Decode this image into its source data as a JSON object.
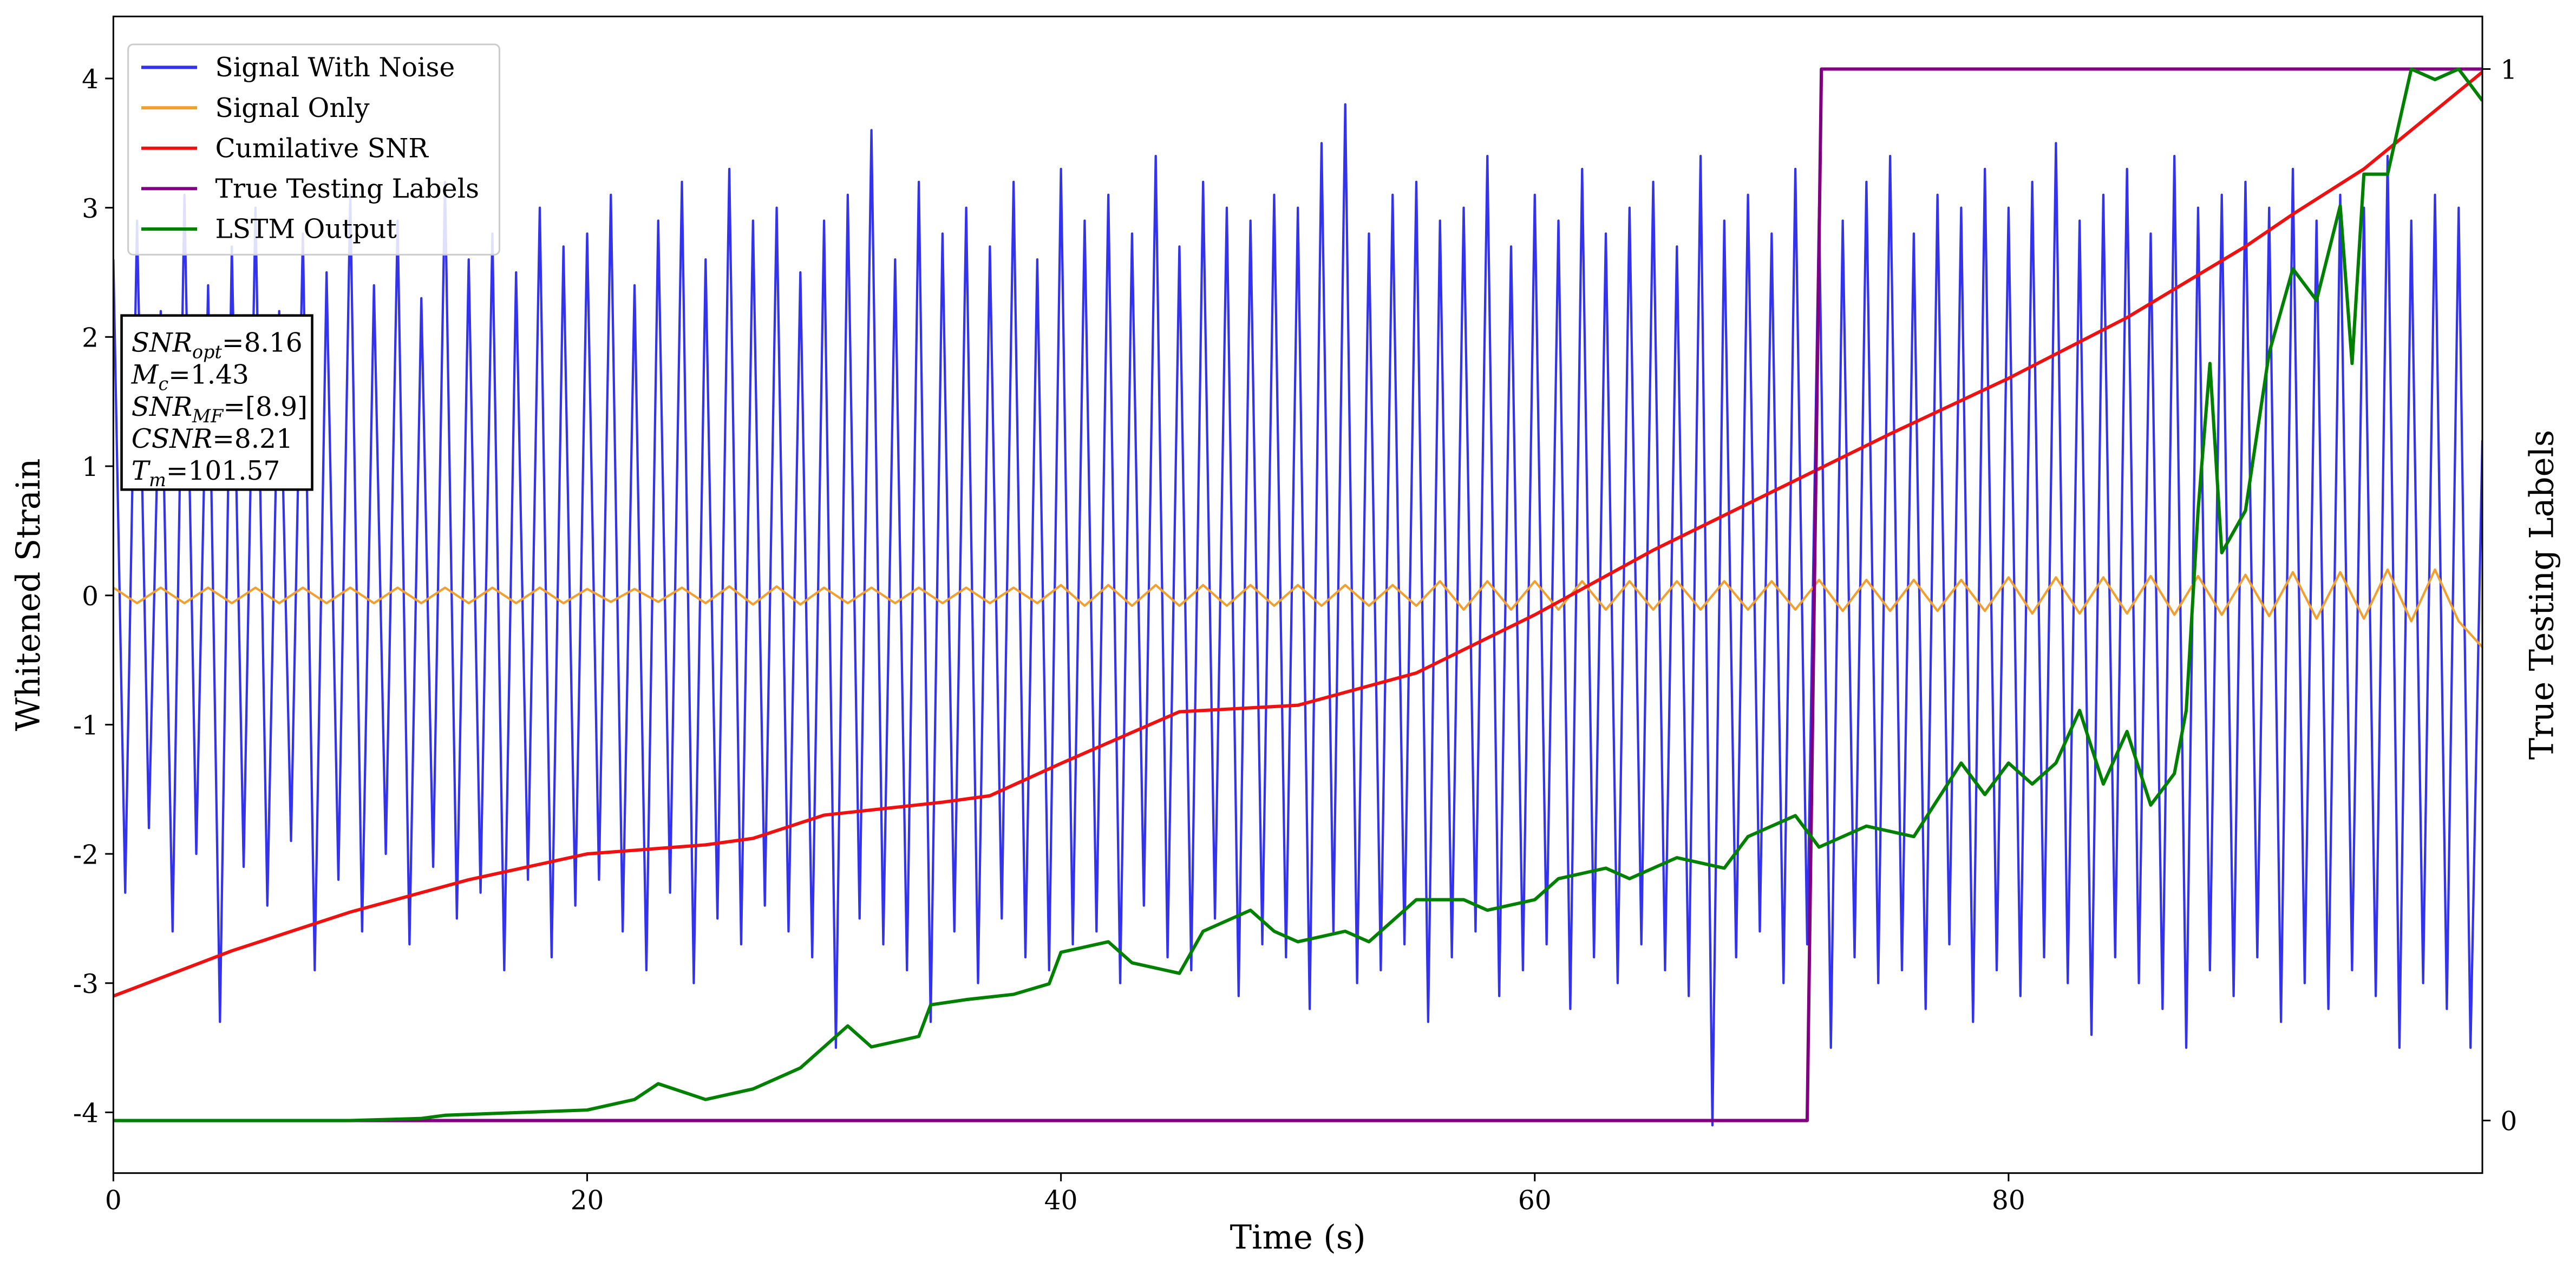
{
  "chart_data": {
    "type": "line",
    "xlabel": "Time (s)",
    "ylabel": "Whitened Strain",
    "y2label": "True Testing Labels",
    "xlim": [
      0,
      100
    ],
    "ylim": [
      -4.47,
      4.48
    ],
    "y2lim": [
      -0.05,
      1.05
    ],
    "xticks": [
      0,
      20,
      40,
      60,
      80
    ],
    "yticks": [
      -4,
      -3,
      -2,
      -1,
      0,
      1,
      2,
      3,
      4
    ],
    "y2ticks": [
      0,
      1
    ],
    "legend": "upper left",
    "annotation_lines": [
      {
        "symbol": "SNR",
        "sub": "opt",
        "text": "=8.16"
      },
      {
        "symbol": "M",
        "sub": "c",
        "text": "=1.43"
      },
      {
        "symbol": "SNR",
        "sub": "MF",
        "text": "=[8.9]"
      },
      {
        "symbol": "CSNR",
        "text": "=8.21"
      },
      {
        "symbol": "T",
        "sub": "m",
        "text": "=101.57"
      }
    ],
    "series": [
      {
        "name": "Signal With Noise",
        "color": "#3333ee",
        "x": [
          0,
          0.5,
          1,
          1.5,
          2,
          2.5,
          3,
          3.5,
          4,
          4.5,
          5,
          5.5,
          6,
          6.5,
          7,
          7.5,
          8,
          8.5,
          9,
          9.5,
          10,
          10.5,
          11,
          11.5,
          12,
          12.5,
          13,
          13.5,
          14,
          14.5,
          15,
          15.5,
          16,
          16.5,
          17,
          17.5,
          18,
          18.5,
          19,
          19.5,
          20,
          20.5,
          21,
          21.5,
          22,
          22.5,
          23,
          23.5,
          24,
          24.5,
          25,
          25.5,
          26,
          26.5,
          27,
          27.5,
          28,
          28.5,
          29,
          29.5,
          30,
          30.5,
          31,
          31.5,
          32,
          32.5,
          33,
          33.5,
          34,
          34.5,
          35,
          35.5,
          36,
          36.5,
          37,
          37.5,
          38,
          38.5,
          39,
          39.5,
          40,
          40.5,
          41,
          41.5,
          42,
          42.5,
          43,
          43.5,
          44,
          44.5,
          45,
          45.5,
          46,
          46.5,
          47,
          47.5,
          48,
          48.5,
          49,
          49.5,
          50,
          50.5,
          51,
          51.5,
          52,
          52.5,
          53,
          53.5,
          54,
          54.5,
          55,
          55.5,
          56,
          56.5,
          57,
          57.5,
          58,
          58.5,
          59,
          59.5,
          60,
          60.5,
          61,
          61.5,
          62,
          62.5,
          63,
          63.5,
          64,
          64.5,
          65,
          65.5,
          66,
          66.5,
          67,
          67.5,
          68,
          68.5,
          69,
          69.5,
          70,
          70.5,
          71,
          71.5,
          72,
          72.5,
          73,
          73.5,
          74,
          74.5,
          75,
          75.5,
          76,
          76.5,
          77,
          77.5,
          78,
          78.5,
          79,
          79.5,
          80,
          80.5,
          81,
          81.5,
          82,
          82.5,
          83,
          83.5,
          84,
          84.5,
          85,
          85.5,
          86,
          86.5,
          87,
          87.5,
          88,
          88.5,
          89,
          89.5,
          90,
          90.5,
          91,
          91.5,
          92,
          92.5,
          93,
          93.5,
          94,
          94.5,
          95,
          95.5,
          96,
          96.5,
          97,
          97.5,
          98,
          98.5,
          99,
          99.5,
          100
        ],
        "values": [
          2.6,
          -2.3,
          2.9,
          -1.8,
          2.2,
          -2.6,
          3.1,
          -2.0,
          2.4,
          -3.3,
          2.7,
          -2.1,
          3.0,
          -2.4,
          2.2,
          -1.9,
          2.8,
          -2.9,
          2.5,
          -2.2,
          3.1,
          -2.6,
          2.4,
          -2.0,
          2.9,
          -2.7,
          2.3,
          -2.1,
          3.2,
          -2.5,
          2.6,
          -2.3,
          2.8,
          -2.9,
          2.5,
          -2.2,
          3.0,
          -2.8,
          2.7,
          -2.4,
          2.8,
          -2.2,
          3.1,
          -2.6,
          2.4,
          -2.9,
          2.9,
          -2.3,
          3.2,
          -3.0,
          2.6,
          -2.5,
          3.3,
          -2.7,
          2.9,
          -2.4,
          3.0,
          -2.6,
          2.5,
          -2.8,
          2.9,
          -3.5,
          3.1,
          -2.5,
          3.6,
          -2.7,
          2.6,
          -2.9,
          3.2,
          -3.3,
          2.8,
          -2.6,
          3.0,
          -3.0,
          2.7,
          -2.5,
          3.2,
          -2.8,
          2.6,
          -2.9,
          3.3,
          -2.7,
          2.9,
          -2.6,
          3.1,
          -3.0,
          2.8,
          -2.4,
          3.4,
          -2.8,
          2.7,
          -2.9,
          3.2,
          -2.5,
          3.0,
          -3.1,
          2.9,
          -2.7,
          3.1,
          -2.8,
          3.0,
          -3.2,
          3.5,
          -2.6,
          3.8,
          -3.0,
          2.8,
          -2.9,
          3.1,
          -2.7,
          3.2,
          -3.3,
          2.9,
          -2.8,
          3.0,
          -2.6,
          3.4,
          -3.1,
          2.7,
          -2.9,
          3.1,
          -2.7,
          2.9,
          -3.2,
          3.3,
          -2.8,
          2.8,
          -3.0,
          3.0,
          -2.7,
          3.2,
          -2.9,
          2.7,
          -3.1,
          3.4,
          -4.1,
          2.9,
          -2.8,
          3.1,
          -2.6,
          2.8,
          -3.0,
          3.3,
          -2.7,
          3.0,
          -3.5,
          2.9,
          -2.8,
          3.2,
          -3.0,
          3.4,
          -2.9,
          2.8,
          -3.2,
          3.1,
          -2.7,
          3.0,
          -3.3,
          3.3,
          -2.9,
          3.0,
          -3.1,
          3.2,
          -2.8,
          3.5,
          -3.0,
          2.9,
          -3.4,
          3.1,
          -2.8,
          3.3,
          -3.0,
          2.8,
          -3.2,
          3.4,
          -3.5,
          3.0,
          -2.9,
          3.1,
          -3.1,
          3.2,
          -2.8,
          3.0,
          -3.3,
          3.3,
          -3.0,
          2.9,
          -3.2,
          3.1,
          -2.9,
          3.0,
          -3.1,
          3.4,
          -3.5,
          2.9,
          -3.0,
          3.1,
          -3.2,
          3.0,
          -3.5,
          1.2
        ]
      },
      {
        "name": "Signal Only",
        "color": "#f0a030",
        "x": [
          0,
          1,
          2,
          3,
          4,
          5,
          6,
          7,
          8,
          9,
          10,
          11,
          12,
          13,
          14,
          15,
          16,
          17,
          18,
          19,
          20,
          21,
          22,
          23,
          24,
          25,
          26,
          27,
          28,
          29,
          30,
          31,
          32,
          33,
          34,
          35,
          36,
          37,
          38,
          39,
          40,
          41,
          42,
          43,
          44,
          45,
          46,
          47,
          48,
          49,
          50,
          51,
          52,
          53,
          54,
          55,
          56,
          57,
          58,
          59,
          60,
          61,
          62,
          63,
          64,
          65,
          66,
          67,
          68,
          69,
          70,
          71,
          72,
          73,
          74,
          75,
          76,
          77,
          78,
          79,
          80,
          81,
          82,
          83,
          84,
          85,
          86,
          87,
          88,
          89,
          90,
          91,
          92,
          93,
          94,
          95,
          96,
          97,
          98,
          99,
          100
        ],
        "values": [
          0.06,
          -0.06,
          0.06,
          -0.06,
          0.06,
          -0.06,
          0.06,
          -0.06,
          0.06,
          -0.06,
          0.06,
          -0.06,
          0.06,
          -0.06,
          0.06,
          -0.06,
          0.06,
          -0.06,
          0.06,
          -0.06,
          0.05,
          -0.05,
          0.05,
          -0.05,
          0.06,
          -0.06,
          0.07,
          -0.07,
          0.07,
          -0.07,
          0.06,
          -0.06,
          0.06,
          -0.06,
          0.06,
          -0.06,
          0.06,
          -0.06,
          0.06,
          -0.06,
          0.08,
          -0.08,
          0.08,
          -0.08,
          0.08,
          -0.08,
          0.08,
          -0.08,
          0.08,
          -0.08,
          0.08,
          -0.08,
          0.08,
          -0.08,
          0.08,
          -0.08,
          0.11,
          -0.11,
          0.11,
          -0.11,
          0.11,
          -0.11,
          0.11,
          -0.11,
          0.11,
          -0.11,
          0.11,
          -0.11,
          0.11,
          -0.11,
          0.11,
          -0.11,
          0.12,
          -0.12,
          0.12,
          -0.12,
          0.12,
          -0.12,
          0.12,
          -0.12,
          0.14,
          -0.14,
          0.14,
          -0.14,
          0.14,
          -0.14,
          0.15,
          -0.15,
          0.15,
          -0.15,
          0.16,
          -0.16,
          0.18,
          -0.18,
          0.18,
          -0.18,
          0.2,
          -0.2,
          0.2,
          -0.2,
          -0.4
        ]
      },
      {
        "name": "Cumilative SNR",
        "color": "#ee1111",
        "x": [
          0,
          5,
          10,
          15,
          20,
          25,
          27,
          30,
          35,
          37,
          40,
          45,
          50,
          55,
          60,
          65,
          70,
          75,
          80,
          85,
          90,
          92,
          95,
          97,
          100
        ],
        "values": [
          -3.1,
          -2.75,
          -2.45,
          -2.2,
          -2.0,
          -1.93,
          -1.88,
          -1.7,
          -1.6,
          -1.55,
          -1.3,
          -0.9,
          -0.85,
          -0.6,
          -0.15,
          0.35,
          0.8,
          1.25,
          1.68,
          2.15,
          2.7,
          2.95,
          3.3,
          3.6,
          4.05
        ]
      },
      {
        "name": "True Testing Labels",
        "color": "#800080",
        "axis": "y2",
        "x": [
          0,
          71.5,
          72.1,
          100
        ],
        "values": [
          0,
          0,
          1,
          1
        ]
      },
      {
        "name": "LSTM Output",
        "color": "#008000",
        "axis": "y2",
        "x": [
          0,
          10,
          13,
          14,
          20,
          22,
          23,
          25,
          27,
          29,
          30,
          31,
          32,
          34,
          34.5,
          36,
          38,
          39.5,
          40,
          42,
          43,
          45,
          46,
          48,
          49,
          50,
          52,
          53,
          55,
          57,
          58,
          60,
          61,
          63,
          64,
          66,
          68,
          69,
          70,
          71,
          72,
          74,
          76,
          78,
          79,
          80,
          81,
          82,
          83,
          84,
          85,
          86,
          87,
          87.5,
          88,
          88.5,
          89,
          90,
          91,
          92,
          93,
          94,
          94.5,
          95,
          96,
          97,
          98,
          99,
          100
        ],
        "values": [
          0,
          0,
          0.002,
          0.005,
          0.01,
          0.02,
          0.035,
          0.02,
          0.03,
          0.05,
          0.07,
          0.09,
          0.07,
          0.08,
          0.11,
          0.115,
          0.12,
          0.13,
          0.16,
          0.17,
          0.15,
          0.14,
          0.18,
          0.2,
          0.18,
          0.17,
          0.18,
          0.17,
          0.21,
          0.21,
          0.2,
          0.21,
          0.23,
          0.24,
          0.23,
          0.25,
          0.24,
          0.27,
          0.28,
          0.29,
          0.26,
          0.28,
          0.27,
          0.34,
          0.31,
          0.34,
          0.32,
          0.34,
          0.39,
          0.32,
          0.37,
          0.3,
          0.33,
          0.39,
          0.58,
          0.72,
          0.54,
          0.58,
          0.73,
          0.81,
          0.78,
          0.87,
          0.72,
          0.9,
          0.9,
          1.0,
          0.99,
          1.0,
          0.97
        ]
      }
    ]
  }
}
